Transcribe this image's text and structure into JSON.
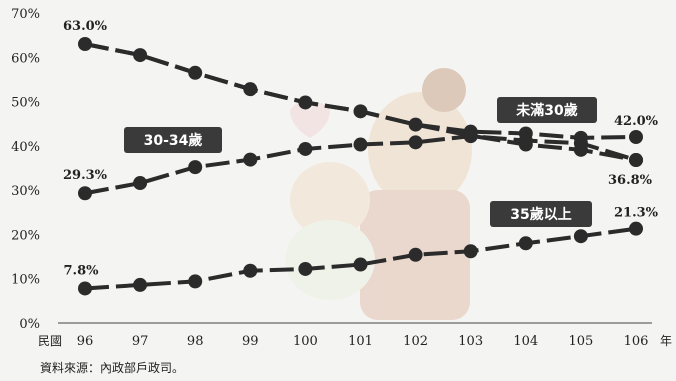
{
  "chart_data": {
    "type": "line",
    "title": "",
    "xlabel": "",
    "ylabel": "",
    "x_prefix_label": "民國",
    "x_suffix_label": "年",
    "categories": [
      "96",
      "97",
      "98",
      "99",
      "100",
      "101",
      "102",
      "103",
      "104",
      "105",
      "106"
    ],
    "y_ticks": [
      "0%",
      "10%",
      "20%",
      "30%",
      "40%",
      "50%",
      "60%",
      "70%"
    ],
    "ylim": [
      0,
      70
    ],
    "grid": false,
    "series": [
      {
        "name": "未滿30歲",
        "values": [
          63.0,
          60.5,
          56.5,
          52.8,
          49.8,
          47.8,
          44.8,
          43.2,
          42.8,
          41.8,
          42.0
        ],
        "color": "#2b2b2b",
        "alt_line_values": [
          63.0,
          60.5,
          56.5,
          52.8,
          49.8,
          47.8,
          44.8,
          42.3,
          40.3,
          39.1,
          36.8
        ]
      },
      {
        "name": "30-34歲",
        "values": [
          29.3,
          31.6,
          35.2,
          36.9,
          39.3,
          40.3,
          40.8,
          42.2,
          41.2,
          40.6,
          36.8
        ],
        "color": "#2b2b2b"
      },
      {
        "name": "35歲以上",
        "values": [
          7.8,
          8.6,
          9.4,
          11.8,
          12.2,
          13.2,
          15.4,
          16.2,
          18.0,
          19.6,
          21.3
        ],
        "color": "#2b2b2b"
      }
    ],
    "data_labels": [
      "63.0%",
      "42.0%",
      "29.3%",
      "36.8%",
      "7.8%",
      "21.3%"
    ],
    "tag_labels": [
      "未滿30歲",
      "30-34歲",
      "35歲以上"
    ],
    "source_note": "資料來源：內政部戶政司。"
  }
}
